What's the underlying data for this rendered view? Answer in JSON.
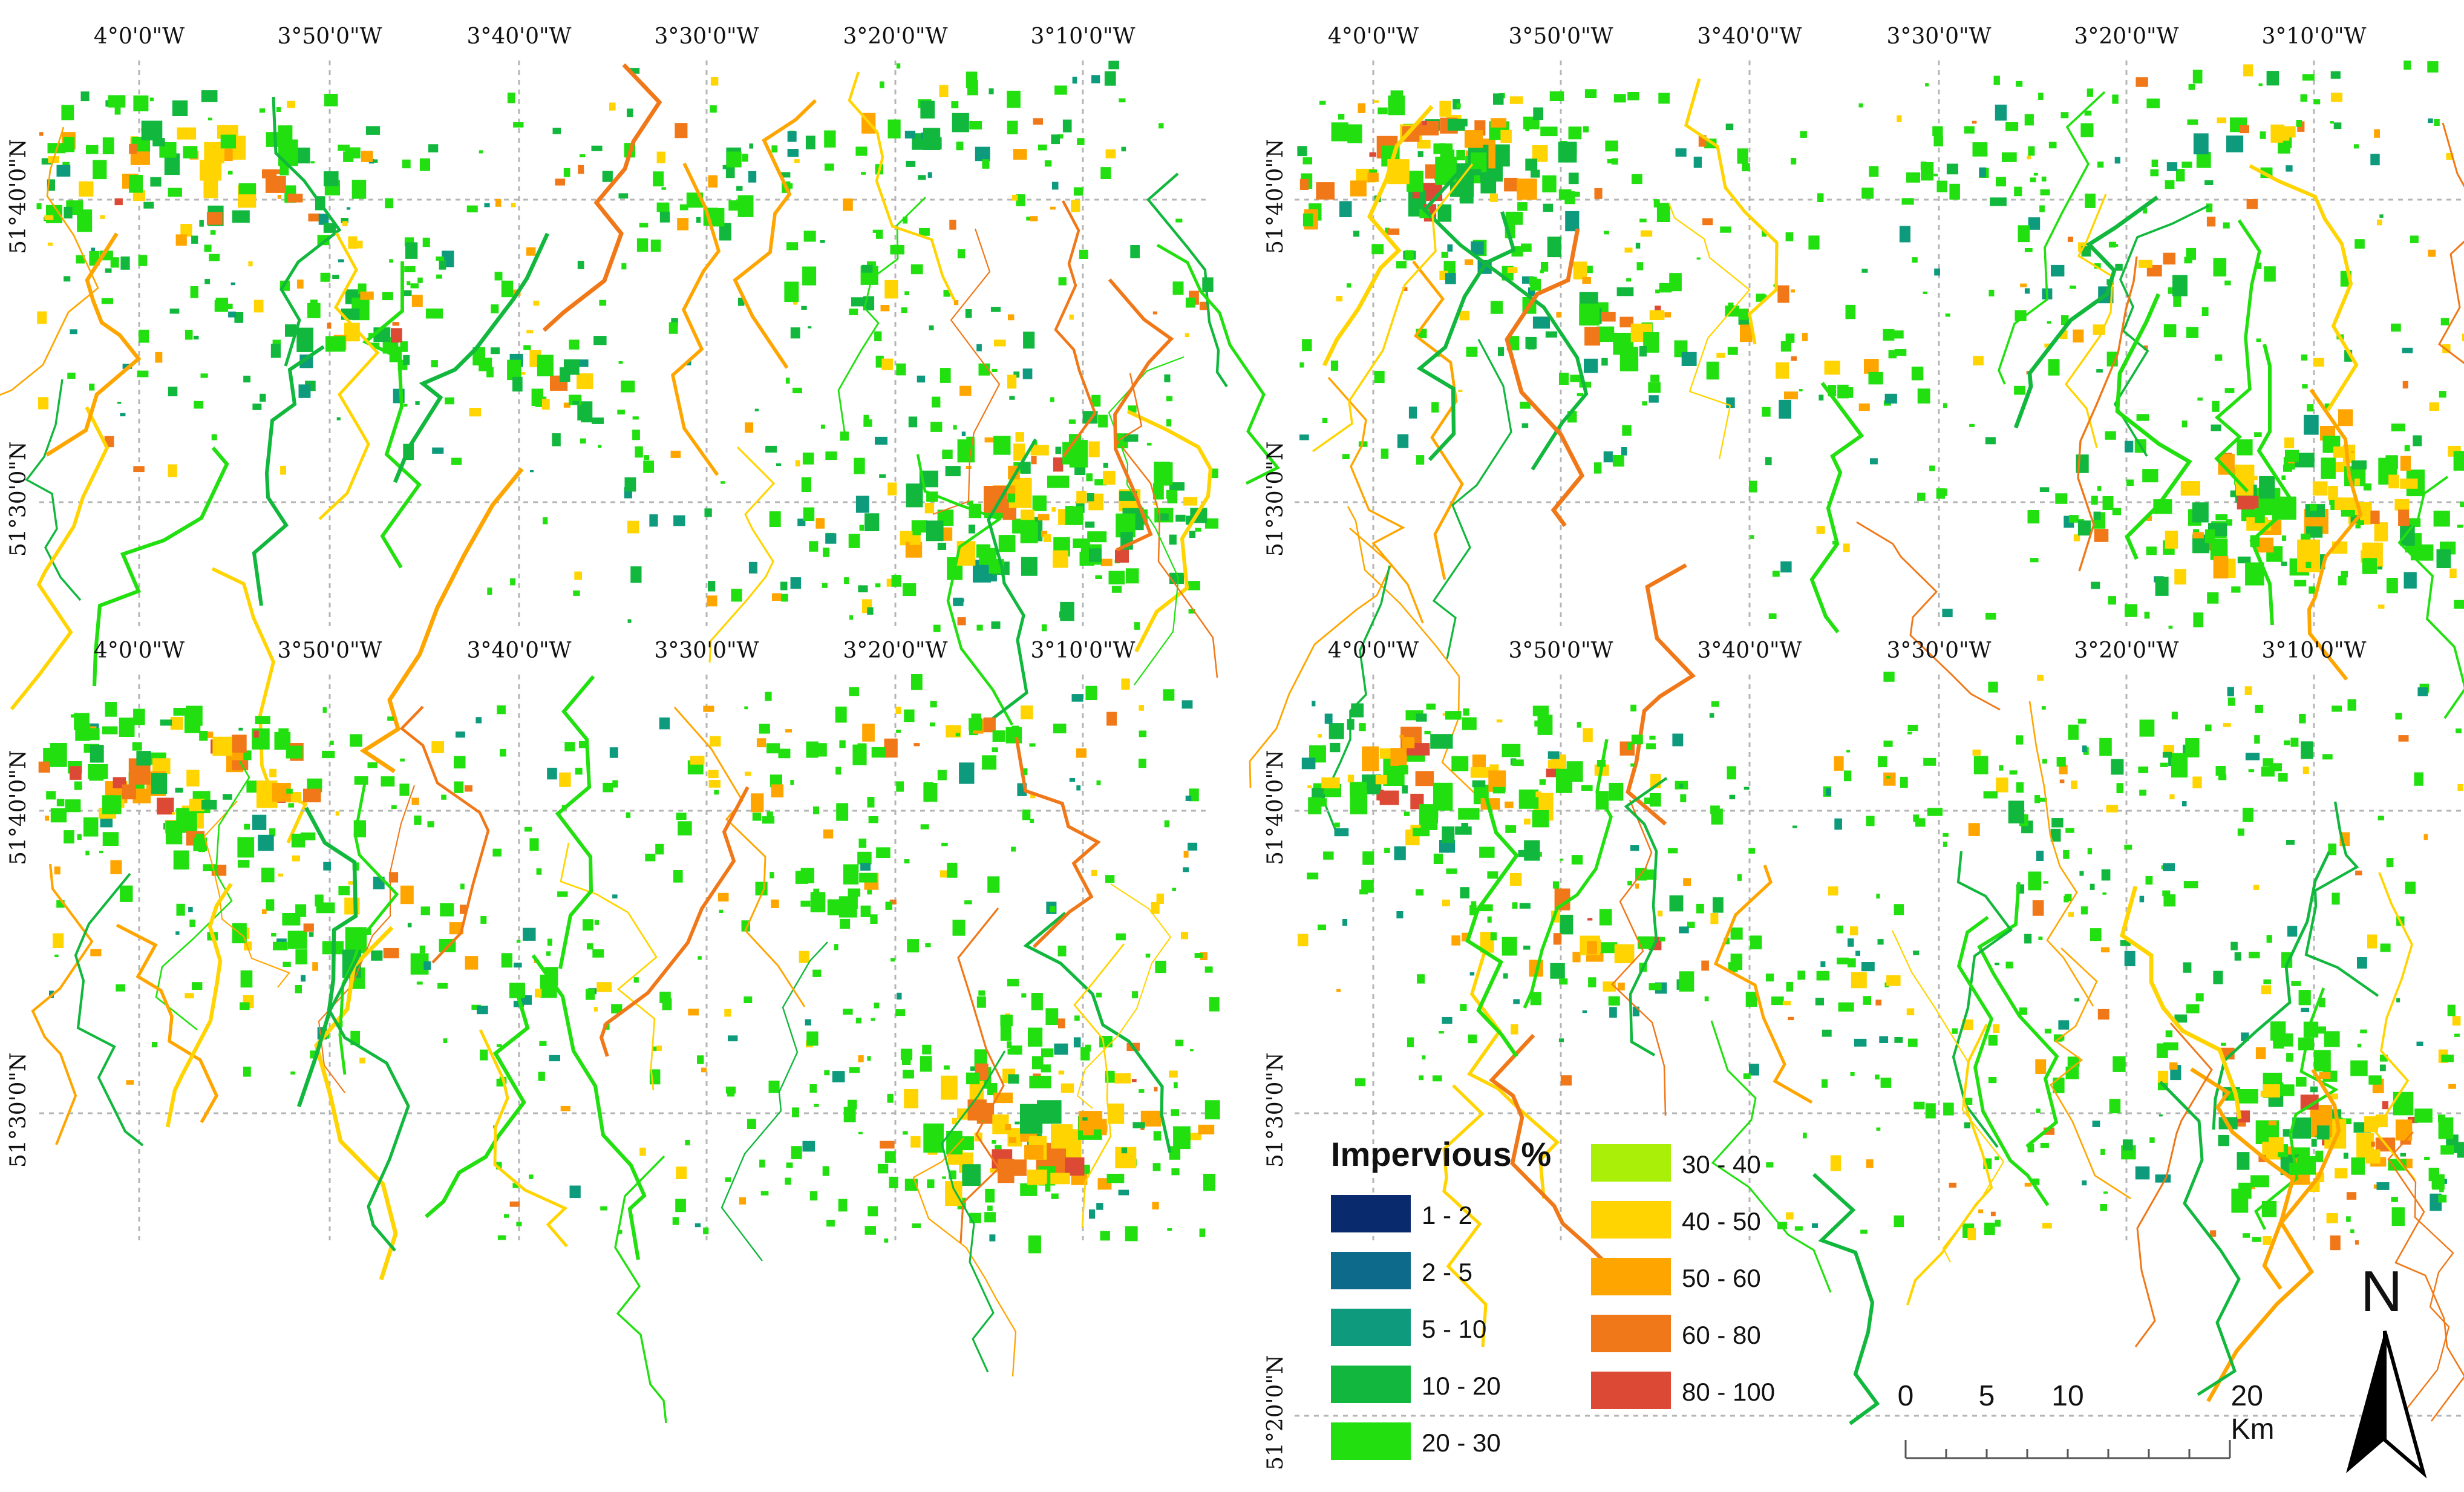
{
  "figure": "Impervious surface maps, four panels",
  "panels": [
    {
      "id": "top-left",
      "lon_labels": [
        "4°0'0\"W",
        "3°50'0\"W",
        "3°40'0\"W",
        "3°30'0\"W",
        "3°20'0\"W",
        "3°10'0\"W"
      ],
      "lat_labels": [
        "51°40'0\"N",
        "51°30'0\"N"
      ]
    },
    {
      "id": "top-right",
      "lon_labels": [
        "4°0'0\"W",
        "3°50'0\"W",
        "3°40'0\"W",
        "3°30'0\"W",
        "3°20'0\"W",
        "3°10'0\"W"
      ],
      "lat_labels": [
        "51°40'0\"N",
        "51°30'0\"N"
      ]
    },
    {
      "id": "bottom-left",
      "lon_labels": [
        "4°0'0\"W",
        "3°50'0\"W",
        "3°40'0\"W",
        "3°30'0\"W",
        "3°20'0\"W",
        "3°10'0\"W"
      ],
      "lat_labels": [
        "51°40'0\"N",
        "51°30'0\"N"
      ]
    },
    {
      "id": "bottom-right",
      "lon_labels": [
        "4°0'0\"W",
        "3°50'0\"W",
        "3°40'0\"W",
        "3°30'0\"W",
        "3°20'0\"W",
        "3°10'0\"W"
      ],
      "lat_labels": [
        "51°40'0\"N",
        "51°30'0\"N",
        "51°20'0\"N"
      ]
    }
  ],
  "legend": {
    "title": "Impervious %",
    "classes": [
      {
        "label": "1 - 2",
        "color": "#0a2a6e"
      },
      {
        "label": "2 - 5",
        "color": "#0d6a8a"
      },
      {
        "label": "5 - 10",
        "color": "#0e9a7c"
      },
      {
        "label": "10 - 20",
        "color": "#11b83d"
      },
      {
        "label": "20 - 30",
        "color": "#22e010"
      },
      {
        "label": "30 - 40",
        "color": "#aaef08"
      },
      {
        "label": "40 - 50",
        "color": "#ffd400"
      },
      {
        "label": "50 - 60",
        "color": "#ffa500"
      },
      {
        "label": "60 - 80",
        "color": "#f07818"
      },
      {
        "label": "80 - 100",
        "color": "#dc4a36"
      }
    ]
  },
  "scale_bar": {
    "labels": [
      "0",
      "5",
      "10",
      "20 Km"
    ]
  },
  "north_arrow": {
    "letter": "N",
    "icon": "north-arrow-icon"
  }
}
